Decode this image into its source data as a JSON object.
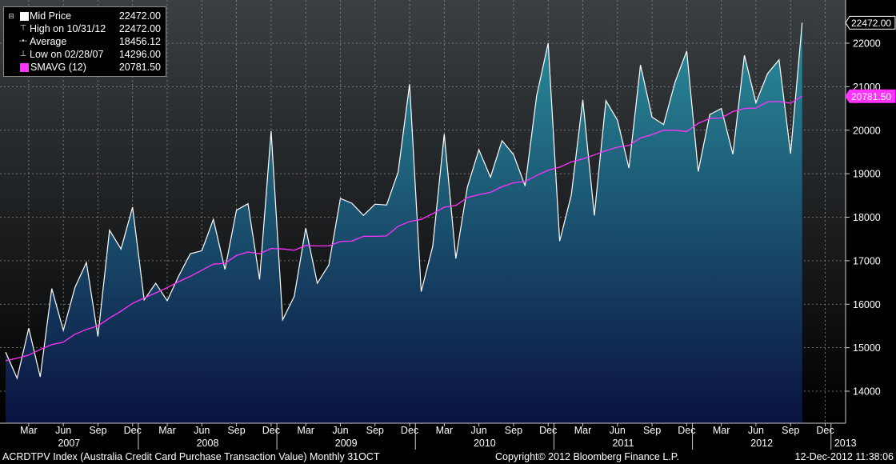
{
  "legend": {
    "items": [
      {
        "label": "Mid Price",
        "value": "22472.00",
        "icon": "square-icon",
        "color": "#ffffff"
      },
      {
        "label": "High on 10/31/12",
        "value": "22472.00",
        "icon": "high-marker-icon"
      },
      {
        "label": "Average",
        "value": "18456.12",
        "icon": "average-line-icon"
      },
      {
        "label": "Low on 02/28/07",
        "value": "14296.00",
        "icon": "low-marker-icon"
      },
      {
        "label": "SMAVG (12)",
        "value": "20781.50",
        "icon": "square-icon",
        "color": "#ff33ff"
      }
    ]
  },
  "footer": {
    "left": "ACRDTPV Index (Australia Credit Card Purchase Transaction Value)  Monthly 31OCT",
    "center": "Copyright© 2012 Bloomberg Finance L.P.",
    "right": "12-Dec-2012 11:38:06"
  },
  "colors": {
    "background_top": "#3a3f43",
    "background_bottom": "#000000",
    "area_top": "#2a8e9c",
    "area_bottom": "#0a1240",
    "price_line": "#ffffff",
    "smavg_line": "#ff33ff",
    "grid": "#8a8a8a"
  },
  "chart_data": {
    "type": "area",
    "title": "",
    "xlabel": "",
    "ylabel": "",
    "ylim": [
      13200,
      22800
    ],
    "y_ticks": [
      14000,
      15000,
      16000,
      17000,
      18000,
      19000,
      20000,
      21000,
      22000
    ],
    "x_month_ticks": [
      "Mar",
      "Jun",
      "Sep",
      "Dec",
      "Mar",
      "Jun",
      "Sep",
      "Dec",
      "Mar",
      "Jun",
      "Sep",
      "Dec",
      "Mar",
      "Jun",
      "Sep",
      "Dec",
      "Mar",
      "Jun",
      "Sep",
      "Dec",
      "Mar",
      "Jun",
      "Sep",
      "Dec"
    ],
    "x_year_labels": [
      "2007",
      "2008",
      "2009",
      "2010",
      "2011",
      "2012",
      "2013"
    ],
    "grid": true,
    "legend_position": "top-left",
    "last_value_labels": [
      {
        "series": "Mid Price",
        "value": "22472.00"
      },
      {
        "series": "SMAVG (12)",
        "value": "20781.50"
      }
    ],
    "x": [
      "2007-01",
      "2007-02",
      "2007-03",
      "2007-04",
      "2007-05",
      "2007-06",
      "2007-07",
      "2007-08",
      "2007-09",
      "2007-10",
      "2007-11",
      "2007-12",
      "2008-01",
      "2008-02",
      "2008-03",
      "2008-04",
      "2008-05",
      "2008-06",
      "2008-07",
      "2008-08",
      "2008-09",
      "2008-10",
      "2008-11",
      "2008-12",
      "2009-01",
      "2009-02",
      "2009-03",
      "2009-04",
      "2009-05",
      "2009-06",
      "2009-07",
      "2009-08",
      "2009-09",
      "2009-10",
      "2009-11",
      "2009-12",
      "2010-01",
      "2010-02",
      "2010-03",
      "2010-04",
      "2010-05",
      "2010-06",
      "2010-07",
      "2010-08",
      "2010-09",
      "2010-10",
      "2010-11",
      "2010-12",
      "2011-01",
      "2011-02",
      "2011-03",
      "2011-04",
      "2011-05",
      "2011-06",
      "2011-07",
      "2011-08",
      "2011-09",
      "2011-10",
      "2011-11",
      "2011-12",
      "2012-01",
      "2012-02",
      "2012-03",
      "2012-04",
      "2012-05",
      "2012-06",
      "2012-07",
      "2012-08",
      "2012-09",
      "2012-10"
    ],
    "series": [
      {
        "name": "Mid Price",
        "values": [
          14900,
          14296,
          15450,
          14330,
          16360,
          15400,
          16380,
          16960,
          15260,
          17700,
          17270,
          18230,
          16100,
          16480,
          16080,
          16650,
          17160,
          17230,
          17950,
          16800,
          18160,
          18310,
          16570,
          19980,
          15640,
          16180,
          17750,
          16480,
          16900,
          18430,
          18320,
          18040,
          18300,
          18280,
          19030,
          21060,
          16290,
          17330,
          19910,
          17050,
          18690,
          19550,
          18920,
          19760,
          19440,
          18720,
          20790,
          22000,
          17450,
          18510,
          20700,
          18040,
          20680,
          20230,
          19130,
          21500,
          20300,
          20130,
          21110,
          21820,
          19050,
          20360,
          20500,
          19450,
          21720,
          20630,
          21300,
          21620,
          19460,
          22472
        ]
      },
      {
        "name": "SMAVG (12)",
        "values": [
          14700,
          14760,
          14830,
          14960,
          15070,
          15130,
          15310,
          15420,
          15500,
          15680,
          15840,
          16020,
          16140,
          16260,
          16380,
          16520,
          16640,
          16780,
          16920,
          16940,
          17120,
          17200,
          17160,
          17280,
          17270,
          17240,
          17350,
          17340,
          17340,
          17440,
          17450,
          17560,
          17560,
          17570,
          17790,
          17900,
          17950,
          18080,
          18230,
          18270,
          18450,
          18520,
          18570,
          18700,
          18790,
          18820,
          18960,
          19080,
          19150,
          19270,
          19340,
          19430,
          19530,
          19610,
          19650,
          19820,
          19900,
          20000,
          20000,
          19970,
          20160,
          20270,
          20280,
          20430,
          20500,
          20510,
          20650,
          20660,
          20620,
          20780
        ]
      }
    ]
  }
}
